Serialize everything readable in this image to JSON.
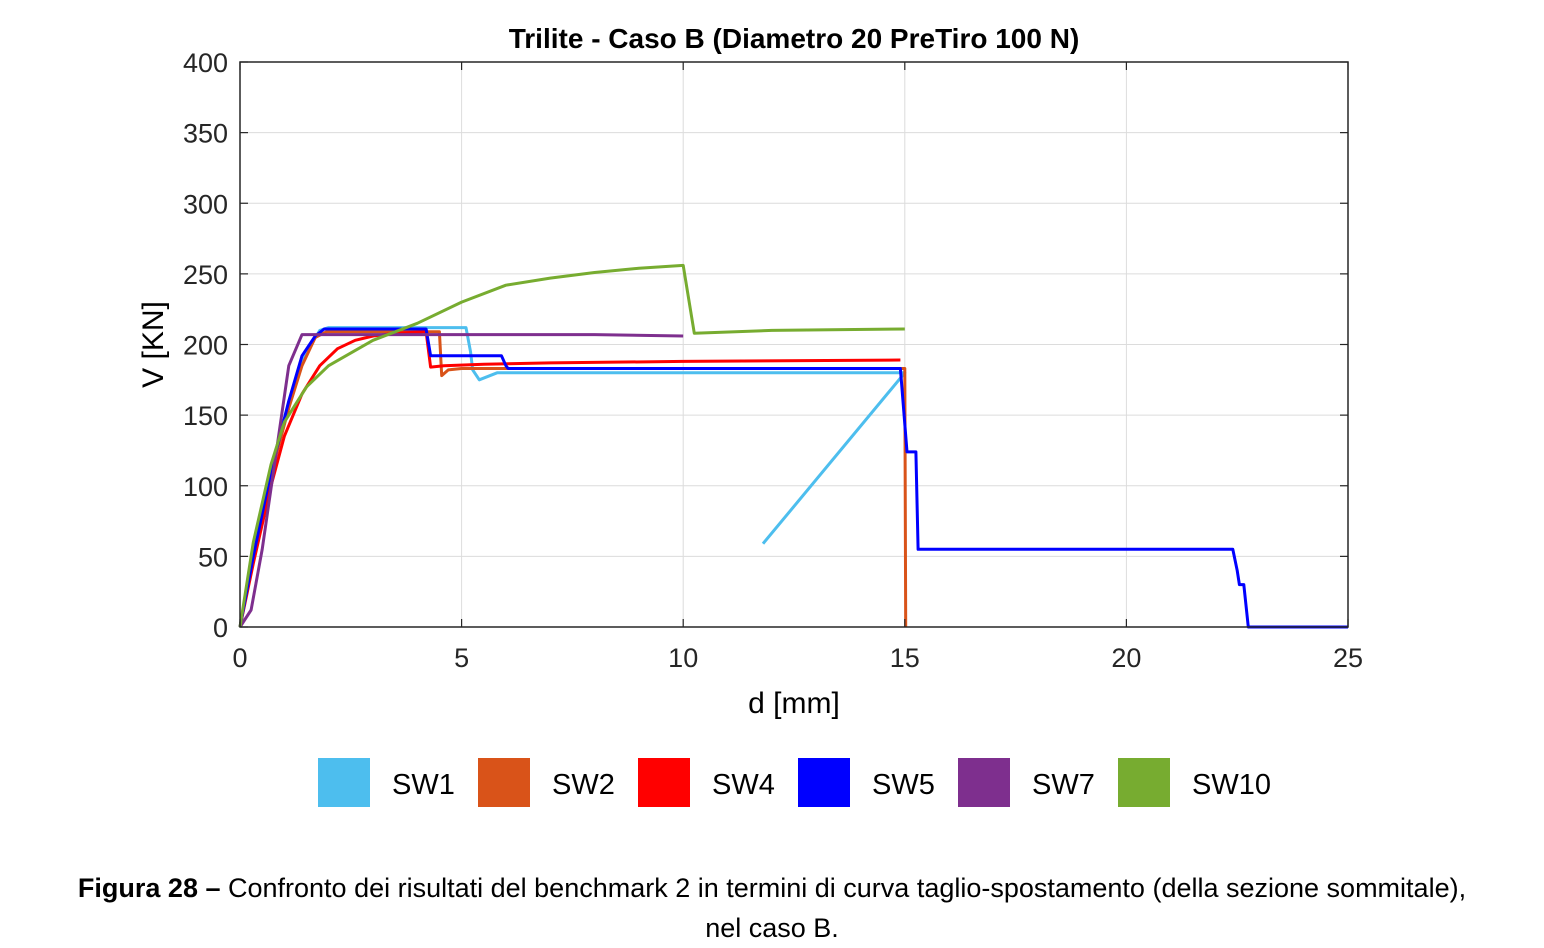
{
  "chart_data": {
    "type": "line",
    "title": "Trilite - Caso B (Diametro 20 PreTiro 100 N)",
    "xlabel": "d [mm]",
    "ylabel": "V [KN]",
    "xlim": [
      0,
      25
    ],
    "ylim": [
      0,
      400
    ],
    "xticks": [
      0,
      5,
      10,
      15,
      20,
      25
    ],
    "yticks": [
      0,
      50,
      100,
      150,
      200,
      250,
      300,
      350,
      400
    ],
    "grid": true,
    "legend_position": "bottom",
    "series": [
      {
        "name": "SW1",
        "color": "#4DBEEE",
        "points": [
          [
            0,
            0
          ],
          [
            0.3,
            50
          ],
          [
            0.7,
            110
          ],
          [
            1.1,
            160
          ],
          [
            1.5,
            195
          ],
          [
            1.8,
            210
          ],
          [
            2.0,
            212
          ],
          [
            4.0,
            212
          ],
          [
            5.1,
            212
          ],
          [
            5.2,
            195
          ],
          [
            5.25,
            182
          ],
          [
            5.4,
            175
          ],
          [
            5.8,
            180
          ],
          [
            15.0,
            180
          ],
          [
            11.8,
            59
          ]
        ]
      },
      {
        "name": "SW2",
        "color": "#D95319",
        "points": [
          [
            0,
            0
          ],
          [
            0.3,
            48
          ],
          [
            0.7,
            108
          ],
          [
            1.1,
            155
          ],
          [
            1.4,
            185
          ],
          [
            1.7,
            205
          ],
          [
            1.95,
            209
          ],
          [
            4.0,
            209
          ],
          [
            4.5,
            209
          ],
          [
            4.55,
            178
          ],
          [
            4.7,
            182
          ],
          [
            5.0,
            183
          ],
          [
            15.0,
            183
          ],
          [
            15.02,
            0
          ]
        ]
      },
      {
        "name": "SW4",
        "color": "#FF0000",
        "points": [
          [
            0,
            0
          ],
          [
            0.3,
            45
          ],
          [
            0.7,
            100
          ],
          [
            1.0,
            135
          ],
          [
            1.4,
            165
          ],
          [
            1.8,
            185
          ],
          [
            2.2,
            197
          ],
          [
            2.6,
            203
          ],
          [
            3.0,
            206
          ],
          [
            3.5,
            208
          ],
          [
            4.2,
            209
          ],
          [
            4.3,
            184
          ],
          [
            4.6,
            185
          ],
          [
            5.5,
            186
          ],
          [
            7,
            187
          ],
          [
            10,
            188
          ],
          [
            14.9,
            189
          ]
        ]
      },
      {
        "name": "SW5",
        "color": "#0000FF",
        "points": [
          [
            0,
            0
          ],
          [
            0.3,
            50
          ],
          [
            0.7,
            110
          ],
          [
            1.1,
            160
          ],
          [
            1.4,
            192
          ],
          [
            1.7,
            206
          ],
          [
            1.9,
            211
          ],
          [
            4.2,
            211
          ],
          [
            4.3,
            192
          ],
          [
            5.9,
            192
          ],
          [
            6.0,
            185
          ],
          [
            6.05,
            183
          ],
          [
            14.9,
            183
          ],
          [
            15.05,
            124
          ],
          [
            15.25,
            124
          ],
          [
            15.3,
            55
          ],
          [
            22.4,
            55
          ],
          [
            22.5,
            40
          ],
          [
            22.55,
            30
          ],
          [
            22.65,
            30
          ],
          [
            22.75,
            0
          ],
          [
            25,
            0
          ]
        ]
      },
      {
        "name": "SW7",
        "color": "#7E2F8E",
        "points": [
          [
            0,
            0
          ],
          [
            0.25,
            12
          ],
          [
            0.5,
            55
          ],
          [
            0.8,
            120
          ],
          [
            1.1,
            185
          ],
          [
            1.4,
            207
          ],
          [
            2.0,
            207
          ],
          [
            5,
            207
          ],
          [
            8,
            207
          ],
          [
            10,
            206
          ]
        ]
      },
      {
        "name": "SW10",
        "color": "#77AC30",
        "points": [
          [
            0,
            0
          ],
          [
            0.3,
            60
          ],
          [
            0.7,
            115
          ],
          [
            1.0,
            145
          ],
          [
            1.5,
            170
          ],
          [
            2.0,
            185
          ],
          [
            3.0,
            203
          ],
          [
            4.0,
            215
          ],
          [
            5.0,
            230
          ],
          [
            6.0,
            242
          ],
          [
            7.0,
            247
          ],
          [
            8.0,
            251
          ],
          [
            9.0,
            254
          ],
          [
            10.0,
            256
          ],
          [
            10.25,
            208
          ],
          [
            12,
            210
          ],
          [
            15,
            211
          ]
        ]
      }
    ]
  },
  "caption": {
    "label": "Figura 28 –",
    "text": "Confronto dei risultati del benchmark 2 in termini di curva taglio-spostamento (della sezione sommitale), nel caso B."
  }
}
